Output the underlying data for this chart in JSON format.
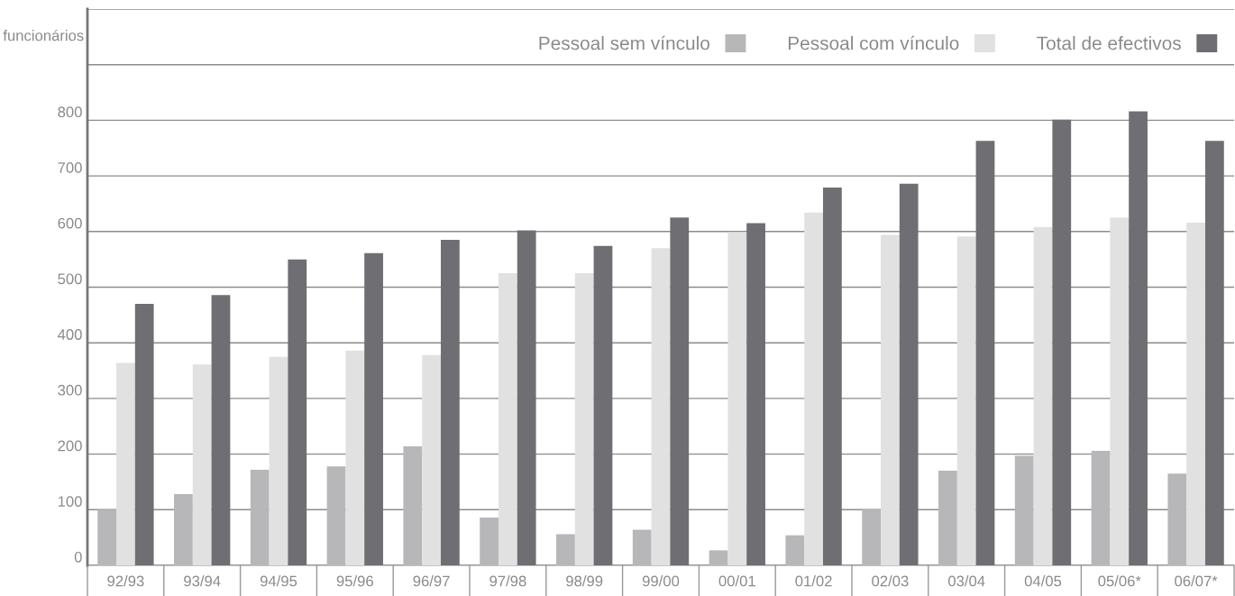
{
  "chart_data": {
    "type": "bar",
    "ylabel": "funcionários",
    "categories": [
      "92/93",
      "93/94",
      "94/95",
      "95/96",
      "96/97",
      "97/98",
      "98/99",
      "99/00",
      "00/01",
      "01/02",
      "02/03",
      "03/04",
      "04/05",
      "05/06*",
      "06/07*"
    ],
    "series": [
      {
        "name": "Pessoal sem vínculo",
        "color": "#b7b7b9",
        "values": [
          100,
          128,
          172,
          178,
          214,
          86,
          56,
          64,
          27,
          54,
          101,
          170,
          197,
          206,
          165
        ]
      },
      {
        "name": "Pessoal com vínculo",
        "color": "#e1e1e1",
        "values": [
          364,
          361,
          375,
          386,
          378,
          525,
          525,
          570,
          599,
          634,
          594,
          591,
          608,
          625,
          616
        ]
      },
      {
        "name": "Total de efectivos",
        "color": "#6f6e73",
        "values": [
          470,
          486,
          550,
          561,
          585,
          602,
          574,
          625,
          615,
          679,
          686,
          763,
          801,
          816,
          763
        ]
      }
    ],
    "ylim": [
      0,
      1000
    ],
    "yticks": [
      0,
      100,
      200,
      300,
      400,
      500,
      600,
      700,
      800,
      {
        "value": 900,
        "label": null
      },
      {
        "value": 1000,
        "label": null
      }
    ],
    "grid": "y",
    "legend": "top right"
  }
}
